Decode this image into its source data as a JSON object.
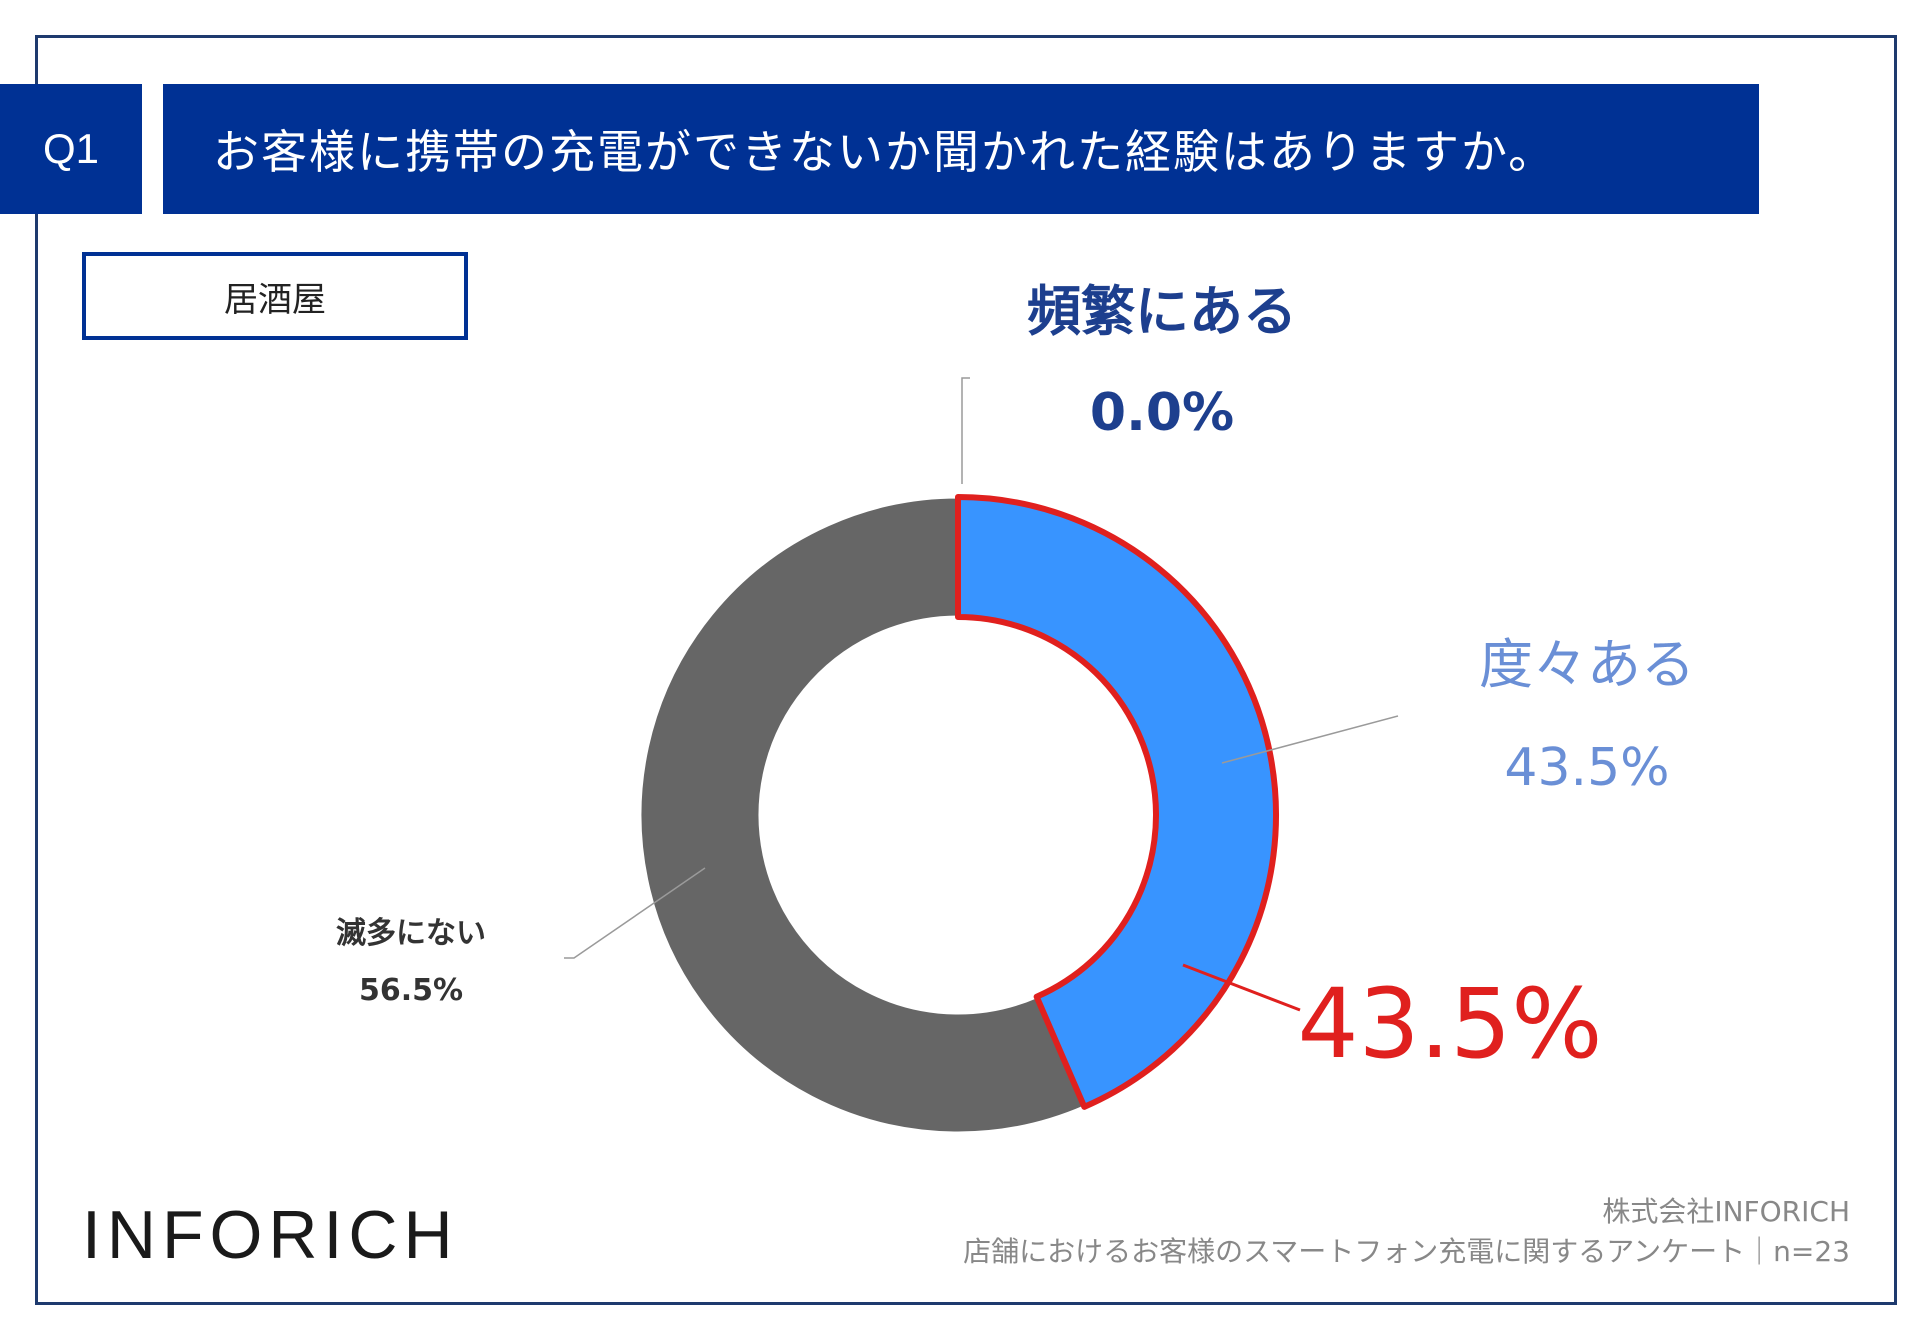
{
  "header": {
    "question_number": "Q1",
    "question_text": "お客様に携帯の充電ができないか聞かれた経験はありますか。"
  },
  "category": "居酒屋",
  "chart_data": {
    "type": "pie",
    "variant": "donut",
    "slices": [
      {
        "label": "頻繁にある",
        "value": 0.0,
        "value_label": "0.0%",
        "color": "#1d3f8e",
        "label_color": "#1d3f8e"
      },
      {
        "label": "度々ある",
        "value": 43.5,
        "value_label": "43.5%",
        "color": "#3894ff",
        "label_color": "#6a8fd6",
        "highlighted": true
      },
      {
        "label": "滅多にない",
        "value": 56.5,
        "value_label": "56.5%",
        "color": "#666666",
        "label_color": "#333333"
      }
    ],
    "highlight_callout": {
      "text": "43.5%",
      "color": "#e0201e"
    }
  },
  "logo": "INFORICH",
  "footer": {
    "company": "株式会社INFORICH",
    "survey": "店舗におけるお客様のスマートフォン充電に関するアンケート｜n=23"
  }
}
